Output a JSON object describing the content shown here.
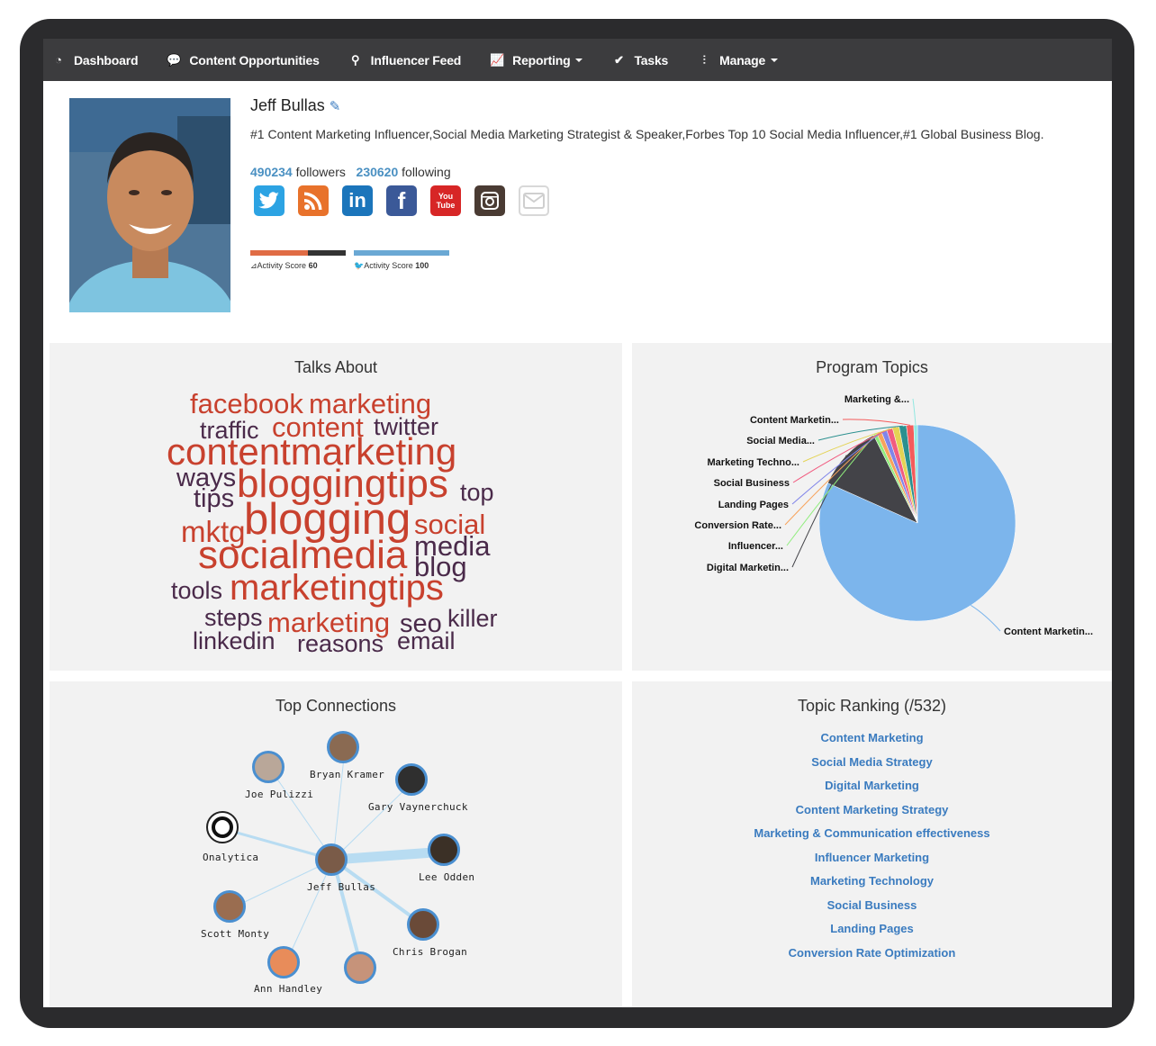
{
  "nav": {
    "items": [
      {
        "label": "Dashboard",
        "icon": "dashboard-icon",
        "dropdown": false
      },
      {
        "label": "Content Opportunities",
        "icon": "comments-icon",
        "dropdown": false
      },
      {
        "label": "Influencer Feed",
        "icon": "search-icon",
        "dropdown": false
      },
      {
        "label": "Reporting",
        "icon": "line-chart-icon",
        "dropdown": true
      },
      {
        "label": "Tasks",
        "icon": "check-icon",
        "dropdown": false
      },
      {
        "label": "Manage",
        "icon": "sliders-icon",
        "dropdown": true
      }
    ]
  },
  "profile": {
    "name": "Jeff Bullas",
    "bio": "#1 Content Marketing Influencer,Social Media Marketing Strategist & Speaker,Forbes Top 10 Social Media Influencer,#1 Global Business Blog.",
    "followers": "490234",
    "followers_label": "followers",
    "following": "230620",
    "following_label": "following",
    "social": [
      {
        "icon": "twitter-icon",
        "glyph": "🐦",
        "color": "#2ca3e3"
      },
      {
        "icon": "rss-icon",
        "glyph": "◉",
        "color": "#e8722b"
      },
      {
        "icon": "linkedin-icon",
        "glyph": "in",
        "color": "#1b75bb"
      },
      {
        "icon": "facebook-icon",
        "glyph": "f",
        "color": "#3b5998"
      },
      {
        "icon": "youtube-icon",
        "glyph": "You Tube",
        "color": "#d72626"
      },
      {
        "icon": "instagram-icon",
        "glyph": "◙",
        "color": "#4a3b33"
      },
      {
        "icon": "email-icon",
        "glyph": "✉",
        "color": "#e6e6e6"
      }
    ],
    "scores": [
      {
        "label": "Activity Score",
        "value": "60",
        "icon": "rss-icon",
        "level": 0.6,
        "color": "#e06c45"
      },
      {
        "label": "Activity Score",
        "value": "100",
        "icon": "twitter-icon",
        "level": 1.0,
        "color": "#6aa8d4"
      }
    ]
  },
  "talks_about": {
    "title": "Talks About",
    "words": [
      {
        "text": "facebook",
        "color": "#c8412e"
      },
      {
        "text": "marketing",
        "color": "#c8412e"
      },
      {
        "text": "traffic",
        "color": "#4a2a4a"
      },
      {
        "text": "content",
        "color": "#c8412e"
      },
      {
        "text": "twitter",
        "color": "#4a2a4a"
      },
      {
        "text": "contentmarketing",
        "color": "#c8412e"
      },
      {
        "text": "ways",
        "color": "#4a2a4a"
      },
      {
        "text": "bloggingtips",
        "color": "#c8412e"
      },
      {
        "text": "top",
        "color": "#4a2a4a"
      },
      {
        "text": "tips",
        "color": "#4a2a4a"
      },
      {
        "text": "mktg",
        "color": "#c8412e"
      },
      {
        "text": "blogging",
        "color": "#c8412e"
      },
      {
        "text": "social",
        "color": "#c8412e"
      },
      {
        "text": "media",
        "color": "#4a2a4a"
      },
      {
        "text": "socialmedia",
        "color": "#c8412e"
      },
      {
        "text": "blog",
        "color": "#4a2a4a"
      },
      {
        "text": "tools",
        "color": "#4a2a4a"
      },
      {
        "text": "marketingtips",
        "color": "#c8412e"
      },
      {
        "text": "steps",
        "color": "#4a2a4a"
      },
      {
        "text": "marketing",
        "color": "#c8412e"
      },
      {
        "text": "seo",
        "color": "#4a2a4a"
      },
      {
        "text": "killer",
        "color": "#4a2a4a"
      },
      {
        "text": "linkedin",
        "color": "#4a2a4a"
      },
      {
        "text": "reasons",
        "color": "#4a2a4a"
      },
      {
        "text": "email",
        "color": "#4a2a4a"
      }
    ]
  },
  "program_topics": {
    "title": "Program Topics",
    "chart_data": {
      "type": "pie",
      "labels": [
        "Content Marketin...",
        "Digital Marketin...",
        "Influencer...",
        "Conversion Rate...",
        "Landing Pages",
        "Social Business",
        "Marketing Techno...",
        "Social Media...",
        "Content Marketin...",
        "Marketing &..."
      ],
      "values": [
        82,
        11,
        0.6,
        0.8,
        0.9,
        1.0,
        1.1,
        1.2,
        1.2,
        0.6
      ],
      "colors": [
        "#7cb5ec",
        "#434348",
        "#90ed7d",
        "#f7a35c",
        "#8085e9",
        "#f15c80",
        "#e4d354",
        "#2b908f",
        "#f45b5b",
        "#91e8e1"
      ]
    }
  },
  "top_connections": {
    "title": "Top Connections",
    "nodes": [
      {
        "name": "Jeff Bullas"
      },
      {
        "name": "Bryan Kramer"
      },
      {
        "name": "Joe Pulizzi"
      },
      {
        "name": "Gary Vaynerchuck"
      },
      {
        "name": "Onalytica"
      },
      {
        "name": "Lee Odden"
      },
      {
        "name": "Scott Monty"
      },
      {
        "name": "Chris Brogan"
      },
      {
        "name": "Ann Handley"
      },
      {
        "name": ""
      }
    ]
  },
  "topic_ranking": {
    "title": "Topic Ranking (/532)",
    "items": [
      "Content Marketing",
      "Social Media Strategy",
      "Digital Marketing",
      "Content Marketing Strategy",
      "Marketing & Communication effectiveness",
      "Influencer Marketing",
      "Marketing Technology",
      "Social Business",
      "Landing Pages",
      "Conversion Rate Optimization"
    ]
  }
}
